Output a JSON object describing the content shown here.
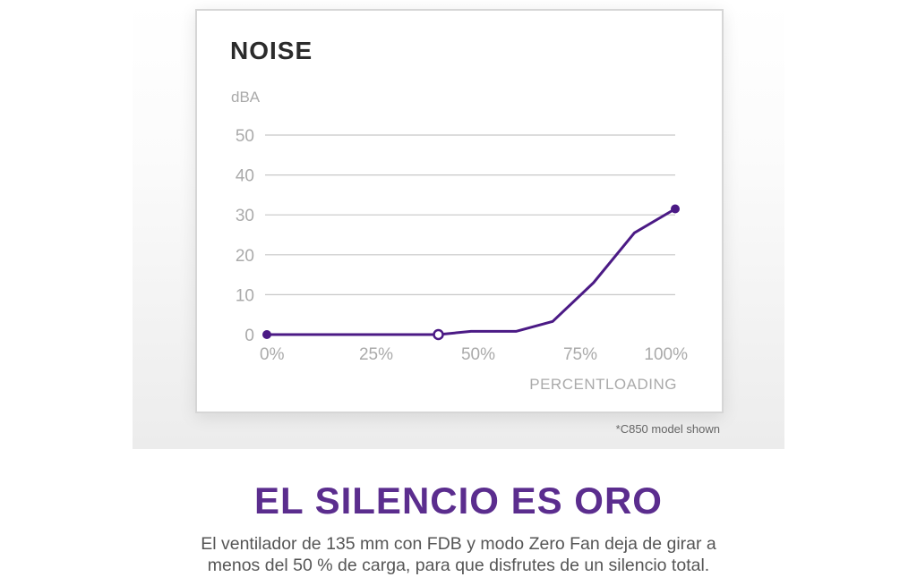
{
  "chart_data": {
    "type": "line",
    "title": "NOISE",
    "ylabel": "dBA",
    "xlabel": "PERCENTLOADING",
    "ylim": [
      0,
      50
    ],
    "yticks": [
      "0",
      "10",
      "20",
      "30",
      "40",
      "50"
    ],
    "ytick_values": [
      0,
      10,
      20,
      30,
      40,
      50
    ],
    "xlim": [
      0,
      100
    ],
    "xticks": [
      "0%",
      "25%",
      "50%",
      "75%",
      "100%"
    ],
    "xtick_values": [
      0,
      25,
      50,
      75,
      100
    ],
    "grid": true,
    "series": [
      {
        "color": "#4b1a85",
        "x": [
          0,
          42,
          50,
          61,
          70,
          80,
          90,
          100
        ],
        "y": [
          0,
          0,
          0.8,
          0.8,
          3.3,
          13,
          25.5,
          31.5
        ],
        "markers": [
          {
            "x": 0,
            "y": 0,
            "style": "filled"
          },
          {
            "x": 42,
            "y": 0,
            "style": "hollow"
          },
          {
            "x": 100,
            "y": 31.5,
            "style": "filled"
          }
        ]
      }
    ]
  },
  "footnote": "*C850 model shown",
  "headline": "EL SILENCIO ES ORO",
  "description_lines": [
    "El ventilador de 135 mm con FDB y modo Zero Fan deja de girar a",
    "menos del 50 % de carga, para que disfrutes de un silencio total."
  ],
  "colors": {
    "accent": "#5b2d8e",
    "line": "#4b1a85",
    "grid": "#c8c8c8",
    "axis_text": "#aaaaaa"
  }
}
